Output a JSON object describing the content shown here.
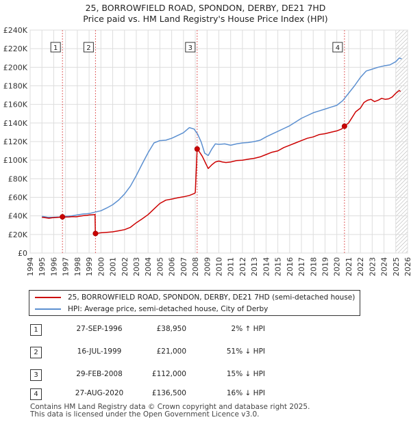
{
  "chart_data": {
    "type": "line",
    "title": "25, BORROWFIELD ROAD, SPONDON, DERBY, DE21 7HD",
    "subtitle": "Price paid vs. HM Land Registry's House Price Index (HPI)",
    "x_ticks": [
      "1994",
      "1995",
      "1996",
      "1997",
      "1998",
      "1999",
      "2000",
      "2001",
      "2002",
      "2003",
      "2004",
      "2005",
      "2006",
      "2007",
      "2008",
      "2009",
      "2010",
      "2011",
      "2012",
      "2013",
      "2014",
      "2015",
      "2016",
      "2017",
      "2018",
      "2019",
      "2020",
      "2021",
      "2022",
      "2023",
      "2024",
      "2025",
      "2026"
    ],
    "y_ticks": [
      "£0",
      "£20K",
      "£40K",
      "£60K",
      "£80K",
      "£100K",
      "£120K",
      "£140K",
      "£160K",
      "£180K",
      "£200K",
      "£220K",
      "£240K"
    ],
    "xlim": [
      1994,
      2026
    ],
    "ylim": [
      0,
      240000
    ],
    "series": [
      {
        "name": "25, BORROWFIELD ROAD, SPONDON, DERBY, DE21 7HD (semi-detached house)",
        "color": "#cc0000",
        "x": [
          1995.0,
          1995.3,
          1995.6,
          1995.9,
          1996.2,
          1996.5,
          1996.74,
          1997.0,
          1997.3,
          1997.6,
          1997.9,
          1998.2,
          1998.5,
          1998.8,
          1999.0,
          1999.3,
          1999.5,
          1999.53,
          1999.54,
          2000.0,
          2000.5,
          2001.0,
          2001.5,
          2002.0,
          2002.5,
          2003.0,
          2003.5,
          2004.0,
          2004.5,
          2005.0,
          2005.5,
          2006.0,
          2006.5,
          2007.0,
          2007.5,
          2007.9,
          2008.0,
          2008.16,
          2008.3,
          2008.6,
          2008.9,
          2009.1,
          2009.4,
          2009.7,
          2010.0,
          2010.3,
          2010.6,
          2011.0,
          2011.5,
          2012.0,
          2012.5,
          2013.0,
          2013.5,
          2014.0,
          2014.5,
          2015.0,
          2015.5,
          2016.0,
          2016.5,
          2017.0,
          2017.5,
          2018.0,
          2018.5,
          2019.0,
          2019.5,
          2020.0,
          2020.4,
          2020.65,
          2021.0,
          2021.3,
          2021.6,
          2022.0,
          2022.3,
          2022.6,
          2022.9,
          2023.2,
          2023.5,
          2023.8,
          2024.1,
          2024.4,
          2024.7,
          2025.0,
          2025.3,
          2025.4
        ],
        "y": [
          38500,
          38000,
          37500,
          38000,
          38200,
          38600,
          38950,
          38700,
          38900,
          39200,
          39000,
          39700,
          40200,
          40600,
          40900,
          41200,
          41400,
          21000,
          21000,
          21800,
          22300,
          22800,
          23900,
          25200,
          27700,
          32600,
          36800,
          41400,
          47400,
          53400,
          56900,
          58100,
          59400,
          60500,
          62000,
          64000,
          65000,
          112000,
          110000,
          104000,
          96000,
          91000,
          95000,
          98000,
          99000,
          98000,
          97500,
          98000,
          99500,
          100000,
          101000,
          102000,
          103500,
          106000,
          108500,
          110000,
          113500,
          116000,
          118500,
          121000,
          123500,
          125000,
          127500,
          128500,
          130000,
          131500,
          133500,
          136500,
          140000,
          146000,
          152000,
          156000,
          162000,
          164500,
          165500,
          163000,
          164500,
          166500,
          165500,
          166000,
          168000,
          172000,
          175000,
          174000
        ],
        "marker_points": [
          1,
          2,
          3,
          4
        ]
      },
      {
        "name": "HPI: Average price, semi-detached house, City of Derby",
        "color": "#5b8fd0",
        "x": [
          1995.0,
          1995.5,
          1996.0,
          1996.5,
          1997.0,
          1997.5,
          1998.0,
          1998.5,
          1999.0,
          1999.5,
          2000.0,
          2000.5,
          2001.0,
          2001.5,
          2002.0,
          2002.5,
          2003.0,
          2003.5,
          2004.0,
          2004.5,
          2005.0,
          2005.5,
          2006.0,
          2006.5,
          2007.0,
          2007.5,
          2007.9,
          2008.2,
          2008.5,
          2008.8,
          2009.1,
          2009.4,
          2009.7,
          2010.0,
          2010.5,
          2011.0,
          2011.5,
          2012.0,
          2012.5,
          2013.0,
          2013.5,
          2014.0,
          2014.5,
          2015.0,
          2015.5,
          2016.0,
          2016.5,
          2017.0,
          2017.5,
          2018.0,
          2018.5,
          2019.0,
          2019.5,
          2020.0,
          2020.5,
          2021.0,
          2021.5,
          2022.0,
          2022.5,
          2023.0,
          2023.5,
          2024.0,
          2024.5,
          2025.0,
          2025.3,
          2025.5
        ],
        "y": [
          39500,
          38500,
          38600,
          38800,
          39500,
          40000,
          41000,
          42000,
          42500,
          44000,
          45500,
          48500,
          52000,
          57000,
          63500,
          72000,
          83500,
          96000,
          108000,
          118500,
          121000,
          121500,
          123500,
          126500,
          129500,
          135000,
          133500,
          128000,
          119500,
          107500,
          105000,
          112000,
          117500,
          117000,
          117500,
          116000,
          117500,
          118500,
          119000,
          120000,
          121500,
          125000,
          128000,
          131000,
          134000,
          137000,
          141000,
          145000,
          148000,
          151000,
          153000,
          155000,
          157000,
          159000,
          164000,
          172000,
          180000,
          189000,
          196000,
          198000,
          200000,
          201500,
          202500,
          206000,
          210000,
          209000
        ]
      }
    ],
    "sales": [
      {
        "num": "1",
        "x": 1996.74,
        "y": 38950
      },
      {
        "num": "2",
        "x": 1999.54,
        "y": 21000
      },
      {
        "num": "3",
        "x": 2008.16,
        "y": 112000
      },
      {
        "num": "4",
        "x": 2020.65,
        "y": 136500
      }
    ],
    "hatch_from": 2025.0
  },
  "legend": {
    "property": "25, BORROWFIELD ROAD, SPONDON, DERBY, DE21 7HD (semi-detached house)",
    "hpi": "HPI: Average price, semi-detached house, City of Derby"
  },
  "transactions": [
    {
      "num": "1",
      "date": "27-SEP-1996",
      "price": "£38,950",
      "hpi": "2% ↑ HPI"
    },
    {
      "num": "2",
      "date": "16-JUL-1999",
      "price": "£21,000",
      "hpi": "51% ↓ HPI"
    },
    {
      "num": "3",
      "date": "29-FEB-2008",
      "price": "£112,000",
      "hpi": "15% ↓ HPI"
    },
    {
      "num": "4",
      "date": "27-AUG-2020",
      "price": "£136,500",
      "hpi": "16% ↓ HPI"
    }
  ],
  "footer": {
    "line1": "Contains HM Land Registry data © Crown copyright and database right 2025.",
    "line2": "This data is licensed under the Open Government Licence v3.0."
  },
  "colors": {
    "property": "#cc0000",
    "hpi": "#5b8fd0",
    "grid": "#dddddd",
    "vline": "#e06060"
  }
}
